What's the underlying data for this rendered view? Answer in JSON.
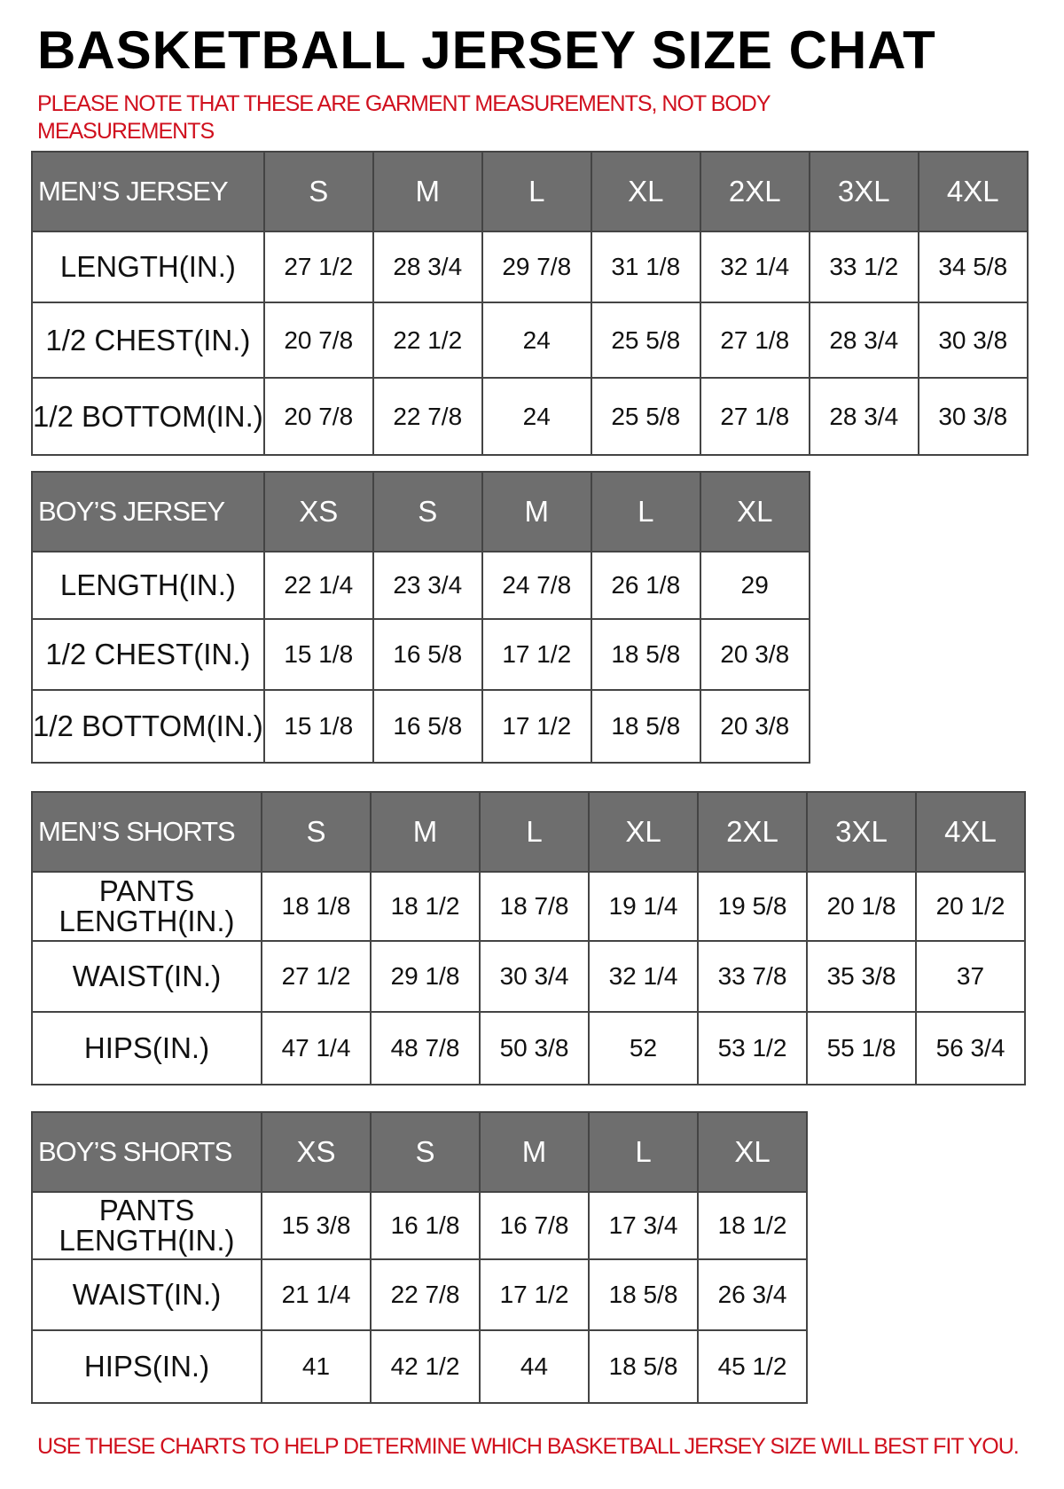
{
  "title": "BASKETBALL JERSEY SIZE CHAT",
  "note": "PLEASE NOTE THAT THESE ARE GARMENT MEASUREMENTS, NOT BODY MEASUREMENTS",
  "footer": "USE THESE CHARTS TO HELP DETERMINE WHICH BASKETBALL JERSEY SIZE WILL BEST FIT YOU.",
  "colors": {
    "header_bg": "#6e6e6e",
    "note_red": "#d0101e"
  },
  "tables": [
    {
      "label": "MEN’S JERSEY",
      "sizes": [
        "S",
        "M",
        "L",
        "XL",
        "2XL",
        "3XL",
        "4XL"
      ],
      "rows": [
        {
          "label": "LENGTH(IN.)",
          "values": [
            "27 1/2",
            "28 3/4",
            "29 7/8",
            "31 1/8",
            "32 1/4",
            "33 1/2",
            "34 5/8"
          ]
        },
        {
          "label": "1/2 CHEST(IN.)",
          "values": [
            "20 7/8",
            "22 1/2",
            "24",
            "25 5/8",
            "27 1/8",
            "28 3/4",
            "30 3/8"
          ]
        },
        {
          "label": "1/2 BOTTOM(IN.)",
          "values": [
            "20 7/8",
            "22 7/8",
            "24",
            "25 5/8",
            "27 1/8",
            "28 3/4",
            "30 3/8"
          ]
        }
      ]
    },
    {
      "label": "BOY’S JERSEY",
      "sizes": [
        "XS",
        "S",
        "M",
        "L",
        "XL"
      ],
      "rows": [
        {
          "label": "LENGTH(IN.)",
          "values": [
            "22 1/4",
            "23 3/4",
            "24 7/8",
            "26 1/8",
            "29"
          ]
        },
        {
          "label": "1/2 CHEST(IN.)",
          "values": [
            "15 1/8",
            "16 5/8",
            "17 1/2",
            "18 5/8",
            "20 3/8"
          ]
        },
        {
          "label": "1/2 BOTTOM(IN.)",
          "values": [
            "15 1/8",
            "16 5/8",
            "17 1/2",
            "18 5/8",
            "20 3/8"
          ]
        }
      ]
    },
    {
      "label": "MEN’S SHORTS",
      "sizes": [
        "S",
        "M",
        "L",
        "XL",
        "2XL",
        "3XL",
        "4XL"
      ],
      "rows": [
        {
          "label": "PANTS LENGTH(IN.)",
          "values": [
            "18 1/8",
            "18 1/2",
            "18 7/8",
            "19 1/4",
            "19 5/8",
            "20 1/8",
            "20 1/2"
          ]
        },
        {
          "label": "WAIST(IN.)",
          "values": [
            "27 1/2",
            "29 1/8",
            "30 3/4",
            "32 1/4",
            "33 7/8",
            "35 3/8",
            "37"
          ]
        },
        {
          "label": "HIPS(IN.)",
          "values": [
            "47 1/4",
            "48 7/8",
            "50 3/8",
            "52",
            "53 1/2",
            "55 1/8",
            "56 3/4"
          ]
        }
      ]
    },
    {
      "label": "BOY’S SHORTS",
      "sizes": [
        "XS",
        "S",
        "M",
        "L",
        "XL"
      ],
      "rows": [
        {
          "label": "PANTS LENGTH(IN.)",
          "values": [
            "15 3/8",
            "16 1/8",
            "16 7/8",
            "17 3/4",
            "18 1/2"
          ]
        },
        {
          "label": "WAIST(IN.)",
          "values": [
            "21 1/4",
            "22 7/8",
            "17 1/2",
            "18 5/8",
            "26 3/4"
          ]
        },
        {
          "label": "HIPS(IN.)",
          "values": [
            "41",
            "42 1/2",
            "44",
            "18 5/8",
            "45 1/2"
          ]
        }
      ]
    }
  ]
}
